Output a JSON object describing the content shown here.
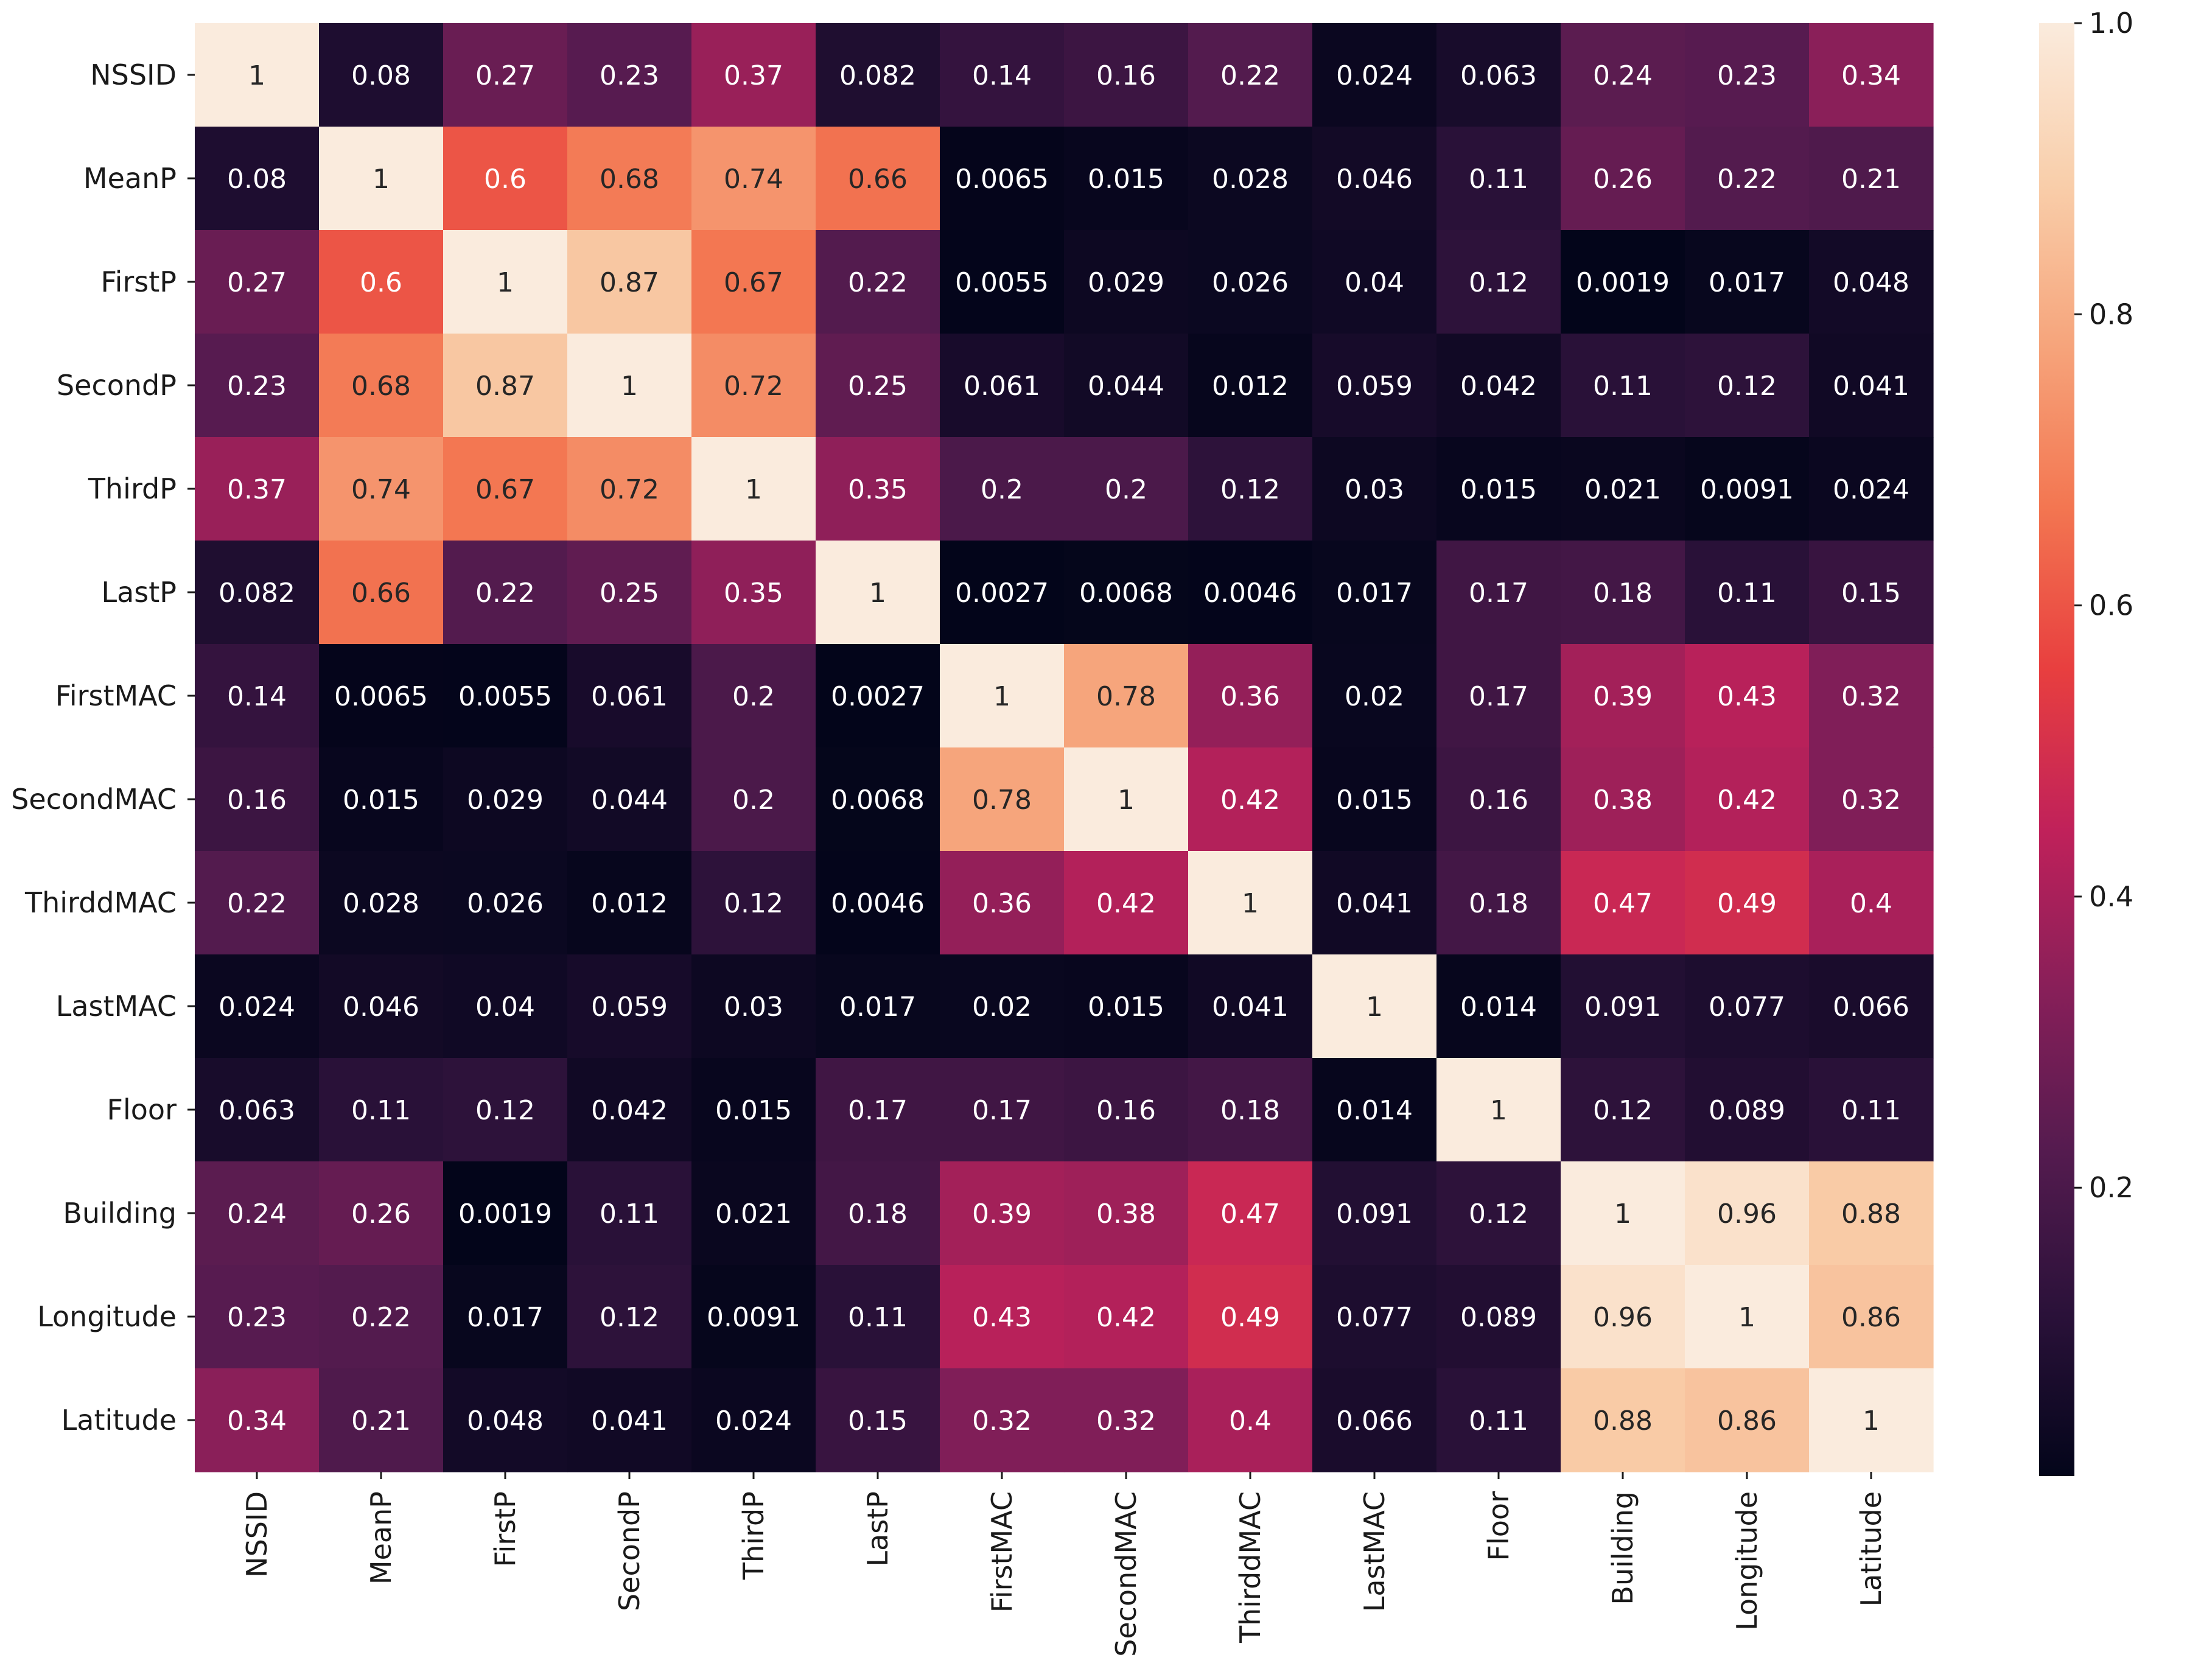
{
  "chart_data": {
    "type": "heatmap",
    "title": "",
    "xlabel": "",
    "ylabel": "",
    "labels": [
      "NSSID",
      "MeanP",
      "FirstP",
      "SecondP",
      "ThirdP",
      "LastP",
      "FirstMAC",
      "SecondMAC",
      "ThirddMAC",
      "LastMAC",
      "Floor",
      "Building",
      "Longitude",
      "Latitude"
    ],
    "annotations": [
      [
        "1",
        "0.08",
        "0.27",
        "0.23",
        "0.37",
        "0.082",
        "0.14",
        "0.16",
        "0.22",
        "0.024",
        "0.063",
        "0.24",
        "0.23",
        "0.34"
      ],
      [
        "0.08",
        "1",
        "0.6",
        "0.68",
        "0.74",
        "0.66",
        "0.0065",
        "0.015",
        "0.028",
        "0.046",
        "0.11",
        "0.26",
        "0.22",
        "0.21"
      ],
      [
        "0.27",
        "0.6",
        "1",
        "0.87",
        "0.67",
        "0.22",
        "0.0055",
        "0.029",
        "0.026",
        "0.04",
        "0.12",
        "0.0019",
        "0.017",
        "0.048"
      ],
      [
        "0.23",
        "0.68",
        "0.87",
        "1",
        "0.72",
        "0.25",
        "0.061",
        "0.044",
        "0.012",
        "0.059",
        "0.042",
        "0.11",
        "0.12",
        "0.041"
      ],
      [
        "0.37",
        "0.74",
        "0.67",
        "0.72",
        "1",
        "0.35",
        "0.2",
        "0.2",
        "0.12",
        "0.03",
        "0.015",
        "0.021",
        "0.0091",
        "0.024"
      ],
      [
        "0.082",
        "0.66",
        "0.22",
        "0.25",
        "0.35",
        "1",
        "0.0027",
        "0.0068",
        "0.0046",
        "0.017",
        "0.17",
        "0.18",
        "0.11",
        "0.15"
      ],
      [
        "0.14",
        "0.0065",
        "0.0055",
        "0.061",
        "0.2",
        "0.0027",
        "1",
        "0.78",
        "0.36",
        "0.02",
        "0.17",
        "0.39",
        "0.43",
        "0.32"
      ],
      [
        "0.16",
        "0.015",
        "0.029",
        "0.044",
        "0.2",
        "0.0068",
        "0.78",
        "1",
        "0.42",
        "0.015",
        "0.16",
        "0.38",
        "0.42",
        "0.32"
      ],
      [
        "0.22",
        "0.028",
        "0.026",
        "0.012",
        "0.12",
        "0.0046",
        "0.36",
        "0.42",
        "1",
        "0.041",
        "0.18",
        "0.47",
        "0.49",
        "0.4"
      ],
      [
        "0.024",
        "0.046",
        "0.04",
        "0.059",
        "0.03",
        "0.017",
        "0.02",
        "0.015",
        "0.041",
        "1",
        "0.014",
        "0.091",
        "0.077",
        "0.066"
      ],
      [
        "0.063",
        "0.11",
        "0.12",
        "0.042",
        "0.015",
        "0.17",
        "0.17",
        "0.16",
        "0.18",
        "0.014",
        "1",
        "0.12",
        "0.089",
        "0.11"
      ],
      [
        "0.24",
        "0.26",
        "0.0019",
        "0.11",
        "0.021",
        "0.18",
        "0.39",
        "0.38",
        "0.47",
        "0.091",
        "0.12",
        "1",
        "0.96",
        "0.88"
      ],
      [
        "0.23",
        "0.22",
        "0.017",
        "0.12",
        "0.0091",
        "0.11",
        "0.43",
        "0.42",
        "0.49",
        "0.077",
        "0.089",
        "0.96",
        "1",
        "0.86"
      ],
      [
        "0.34",
        "0.21",
        "0.048",
        "0.041",
        "0.024",
        "0.15",
        "0.32",
        "0.32",
        "0.4",
        "0.066",
        "0.11",
        "0.88",
        "0.86",
        "1"
      ]
    ],
    "color_scale": {
      "min": 0.0019,
      "max": 1.0,
      "ticks": [
        "0.2",
        "0.4",
        "0.6",
        "0.8",
        "1.0"
      ],
      "tick_values": [
        0.2,
        0.4,
        0.6,
        0.8,
        1.0
      ],
      "colormap": "rocket",
      "stops": [
        "#03051a",
        "#2a1139",
        "#541b4f",
        "#871f59",
        "#c0215a",
        "#e83f3f",
        "#f37651",
        "#f6a47b",
        "#f9ceaa",
        "#faebdd"
      ]
    },
    "grid": false,
    "colorbar_position": "right"
  }
}
